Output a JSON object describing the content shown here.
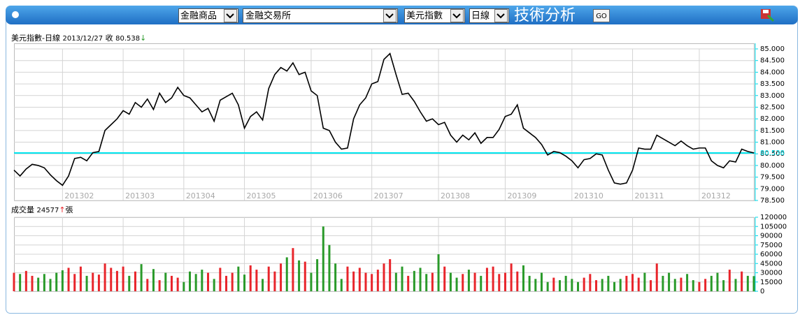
{
  "toolbar": {
    "selects": [
      "金融商品",
      "金融交易所",
      "美元指數",
      "日線"
    ],
    "title": "技術分析",
    "button": "GO"
  },
  "chart_data": [
    {
      "type": "line",
      "title": "美元指數-日線",
      "date": "2013/12/27",
      "close_label": "收",
      "arrow": "↓",
      "color": "#000000",
      "last_color": "#00e5ee",
      "grid": true,
      "categories": [
        null,
        null,
        null,
        null,
        null,
        null,
        null,
        null,
        "201302",
        null,
        null,
        null,
        null,
        null,
        null,
        null,
        null,
        null,
        "201303",
        null,
        null,
        null,
        null,
        null,
        null,
        null,
        null,
        null,
        "201304",
        null,
        null,
        null,
        null,
        null,
        null,
        null,
        null,
        null,
        "201305",
        null,
        null,
        null,
        null,
        null,
        null,
        null,
        null,
        null,
        null,
        "201306",
        null,
        null,
        null,
        null,
        null,
        null,
        null,
        null,
        null,
        "201307",
        null,
        null,
        null,
        null,
        null,
        null,
        null,
        null,
        null,
        null,
        "201308",
        null,
        null,
        null,
        null,
        null,
        null,
        null,
        null,
        null,
        null,
        "201309",
        null,
        null,
        null,
        null,
        null,
        null,
        null,
        null,
        null,
        null,
        "201310",
        null,
        null,
        null,
        null,
        null,
        null,
        null,
        null,
        null,
        "201311",
        null,
        null,
        null,
        null,
        null,
        null,
        null,
        null,
        null,
        null,
        "201312",
        null,
        null,
        null,
        null,
        null,
        null,
        null,
        null,
        null
      ],
      "values": [
        79.8,
        79.55,
        79.85,
        80.05,
        80.0,
        79.9,
        79.6,
        79.35,
        79.15,
        79.55,
        80.3,
        80.35,
        80.2,
        80.55,
        80.6,
        81.5,
        81.75,
        82.0,
        82.35,
        82.2,
        82.7,
        82.5,
        82.85,
        82.4,
        83.1,
        82.7,
        82.9,
        83.35,
        83.0,
        82.9,
        82.6,
        82.3,
        82.45,
        81.9,
        82.8,
        82.95,
        83.1,
        82.6,
        81.6,
        82.1,
        82.3,
        81.95,
        83.3,
        83.9,
        84.2,
        84.05,
        84.4,
        83.9,
        84.0,
        83.2,
        83.0,
        81.6,
        81.5,
        81.0,
        80.7,
        80.75,
        82.0,
        82.6,
        82.9,
        83.5,
        83.6,
        84.55,
        84.8,
        83.9,
        83.05,
        83.1,
        82.75,
        82.3,
        81.9,
        82.0,
        81.75,
        81.85,
        81.3,
        81.0,
        81.3,
        81.1,
        81.4,
        80.95,
        81.2,
        81.2,
        81.55,
        82.1,
        82.2,
        82.6,
        81.6,
        81.4,
        81.2,
        80.9,
        80.45,
        80.6,
        80.55,
        80.4,
        80.2,
        79.9,
        80.25,
        80.3,
        80.5,
        80.45,
        79.8,
        79.25,
        79.2,
        79.25,
        79.8,
        80.75,
        80.7,
        80.7,
        81.3,
        81.15,
        81.0,
        80.85,
        81.05,
        80.85,
        80.7,
        80.75,
        80.75,
        80.2,
        80.0,
        79.9,
        80.2,
        80.15,
        80.7,
        80.6,
        80.538
      ],
      "ylim": [
        78.5,
        85.0
      ],
      "yticks": [
        {
          "value": 78.5,
          "label": "78.500"
        },
        {
          "value": 79,
          "label": "79.000"
        },
        {
          "value": 79.5,
          "label": "79.500"
        },
        {
          "value": 80,
          "label": "80.000"
        },
        {
          "value": 80.5,
          "label": "80.500"
        },
        {
          "value": 81,
          "label": "81.000"
        },
        {
          "value": 81.5,
          "label": "81.500"
        },
        {
          "value": 82,
          "label": "82.000"
        },
        {
          "value": 82.5,
          "label": "82.500"
        },
        {
          "value": 83,
          "label": "83.000"
        },
        {
          "value": 83.5,
          "label": "83.500"
        },
        {
          "value": 84,
          "label": "84.000"
        },
        {
          "value": 84.5,
          "label": "84.500"
        },
        {
          "value": 85,
          "label": "85.000"
        }
      ]
    },
    {
      "type": "bar",
      "title": "成交量",
      "arrow": "↑",
      "unit": "張",
      "up_color": "#e8252b",
      "down_color": "#2a9a2a",
      "grid": true,
      "values": [
        30000,
        28000,
        33000,
        25000,
        22000,
        28000,
        20000,
        30000,
        34000,
        38000,
        28000,
        40000,
        25000,
        30000,
        27000,
        45000,
        38000,
        33000,
        40000,
        25000,
        32000,
        44000,
        20000,
        36000,
        18000,
        30000,
        25000,
        22000,
        15000,
        32000,
        28000,
        35000,
        30000,
        20000,
        38000,
        25000,
        30000,
        40000,
        27000,
        42000,
        35000,
        20000,
        40000,
        32000,
        45000,
        55000,
        70000,
        50000,
        48000,
        30000,
        52000,
        105000,
        75000,
        45000,
        20000,
        40000,
        32000,
        38000,
        30000,
        28000,
        35000,
        45000,
        52000,
        30000,
        40000,
        25000,
        33000,
        38000,
        28000,
        30000,
        60000,
        40000,
        30000,
        22000,
        28000,
        35000,
        30000,
        25000,
        38000,
        40000,
        28000,
        30000,
        45000,
        32000,
        42000,
        25000,
        20000,
        30000,
        15000,
        22000,
        18000,
        25000,
        20000,
        15000,
        22000,
        28000,
        18000,
        20000,
        25000,
        15000,
        20000,
        25000,
        28000,
        22000,
        30000,
        18000,
        45000,
        25000,
        30000,
        20000,
        22000,
        28000,
        18000,
        15000,
        20000,
        25000,
        30000,
        18000,
        35000,
        20000,
        32000,
        25000,
        24577
      ],
      "ylim": [
        0,
        120000
      ],
      "yticks": [
        0,
        15000,
        30000,
        45000,
        60000,
        75000,
        90000,
        105000,
        120000
      ]
    }
  ]
}
